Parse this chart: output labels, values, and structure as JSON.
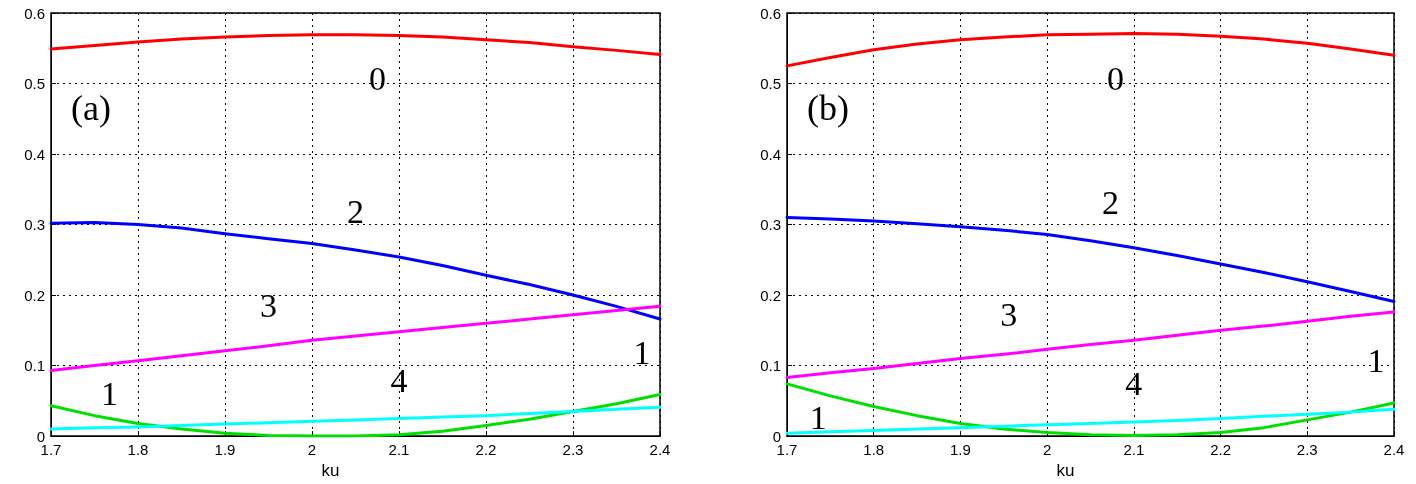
{
  "chart_data": [
    {
      "type": "line",
      "xlabel": "ku",
      "annotations": [
        "(a)"
      ],
      "xlim": [
        1.7,
        2.4
      ],
      "xticks": [
        1.7,
        1.8,
        1.9,
        2,
        2.1,
        2.2,
        2.3,
        2.4
      ],
      "ylim": [
        0,
        0.6
      ],
      "yticks": [
        0,
        0.1,
        0.2,
        0.3,
        0.4,
        0.5,
        0.6
      ],
      "grid": true,
      "legend": false,
      "marker": "none",
      "line_style": "solid",
      "x": [
        1.7,
        1.75,
        1.8,
        1.85,
        1.9,
        1.95,
        2,
        2.05,
        2.1,
        2.15,
        2.2,
        2.25,
        2.3,
        2.35,
        2.4
      ],
      "series": [
        {
          "name": "0",
          "color": "#ff0000",
          "values": [
            0.549,
            0.554,
            0.559,
            0.563,
            0.566,
            0.568,
            0.569,
            0.569,
            0.568,
            0.566,
            0.562,
            0.558,
            0.552,
            0.547,
            0.541
          ]
        },
        {
          "name": "1",
          "color": "#00e000",
          "values": [
            0.043,
            0.029,
            0.018,
            0.01,
            0.004,
            0.001,
            0.0,
            0.0,
            0.002,
            0.007,
            0.015,
            0.024,
            0.035,
            0.046,
            0.059
          ]
        },
        {
          "name": "2",
          "color": "#0000ff",
          "values": [
            0.302,
            0.303,
            0.3,
            0.295,
            0.287,
            0.28,
            0.273,
            0.264,
            0.254,
            0.242,
            0.228,
            0.215,
            0.2,
            0.184,
            0.166
          ]
        },
        {
          "name": "3",
          "color": "#ff00ff",
          "values": [
            0.093,
            0.1,
            0.107,
            0.114,
            0.121,
            0.128,
            0.136,
            0.142,
            0.148,
            0.154,
            0.16,
            0.166,
            0.172,
            0.178,
            0.184
          ]
        },
        {
          "name": "4",
          "color": "#00ffff",
          "values": [
            0.01,
            0.012,
            0.013,
            0.015,
            0.017,
            0.019,
            0.021,
            0.023,
            0.025,
            0.027,
            0.029,
            0.032,
            0.035,
            0.038,
            0.041
          ]
        }
      ]
    },
    {
      "type": "line",
      "xlabel": "ku",
      "annotations": [
        "(b)"
      ],
      "xlim": [
        1.7,
        2.4
      ],
      "xticks": [
        1.7,
        1.8,
        1.9,
        2,
        2.1,
        2.2,
        2.3,
        2.4
      ],
      "ylim": [
        0,
        0.6
      ],
      "yticks": [
        0,
        0.1,
        0.2,
        0.3,
        0.4,
        0.5,
        0.6
      ],
      "grid": true,
      "legend": false,
      "marker": "none",
      "line_style": "solid",
      "x": [
        1.7,
        1.75,
        1.8,
        1.85,
        1.9,
        1.95,
        2,
        2.05,
        2.1,
        2.15,
        2.2,
        2.25,
        2.3,
        2.35,
        2.4
      ],
      "series": [
        {
          "name": "0",
          "color": "#ff0000",
          "values": [
            0.525,
            0.537,
            0.548,
            0.556,
            0.562,
            0.566,
            0.569,
            0.57,
            0.571,
            0.57,
            0.567,
            0.563,
            0.557,
            0.549,
            0.54
          ]
        },
        {
          "name": "1",
          "color": "#00e000",
          "values": [
            0.074,
            0.057,
            0.042,
            0.029,
            0.018,
            0.01,
            0.005,
            0.002,
            0.001,
            0.002,
            0.005,
            0.012,
            0.023,
            0.034,
            0.047
          ]
        },
        {
          "name": "2",
          "color": "#0000ff",
          "values": [
            0.31,
            0.308,
            0.305,
            0.301,
            0.297,
            0.292,
            0.286,
            0.277,
            0.267,
            0.256,
            0.244,
            0.232,
            0.219,
            0.205,
            0.191
          ]
        },
        {
          "name": "3",
          "color": "#ff00ff",
          "values": [
            0.083,
            0.09,
            0.096,
            0.103,
            0.11,
            0.116,
            0.123,
            0.13,
            0.136,
            0.143,
            0.15,
            0.156,
            0.163,
            0.17,
            0.176
          ]
        },
        {
          "name": "4",
          "color": "#00ffff",
          "values": [
            0.004,
            0.006,
            0.008,
            0.01,
            0.012,
            0.014,
            0.016,
            0.018,
            0.02,
            0.022,
            0.025,
            0.028,
            0.031,
            0.034,
            0.038
          ]
        }
      ]
    }
  ]
}
